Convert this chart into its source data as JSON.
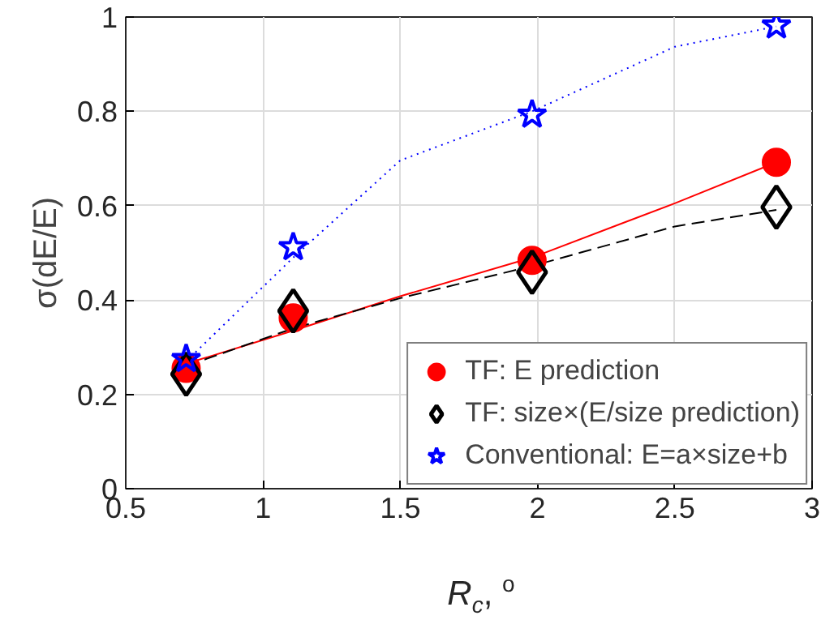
{
  "chart_data": {
    "type": "scatter",
    "xlabel": "R$_{c}$, $^{o}$",
    "ylabel": "σ(dE/E)",
    "xlim": [
      0.5,
      3
    ],
    "xticks": [
      0.5,
      1,
      1.5,
      2,
      2.5,
      3
    ],
    "ylim": [
      0,
      1
    ],
    "yticks": [
      0,
      0.2,
      0.4,
      0.6,
      0.8,
      1
    ],
    "grid": true,
    "legend": "bottom right",
    "x": [
      0.72,
      1.11,
      1.98,
      2.87
    ],
    "series": [
      {
        "type": "line",
        "color": "#ff0000",
        "line_style": "solid",
        "marker": "none",
        "x": [
          0.72,
          1.11,
          1.5,
          1.98,
          2.5,
          2.87
        ],
        "values": [
          0.265,
          0.335,
          0.408,
          0.49,
          0.605,
          0.692
        ]
      },
      {
        "type": "line",
        "color": "#000000",
        "line_style": "dashed",
        "marker": "none",
        "x": [
          0.72,
          1.11,
          1.5,
          1.98,
          2.5,
          2.87
        ],
        "values": [
          0.26,
          0.34,
          0.404,
          0.472,
          0.556,
          0.591
        ]
      },
      {
        "type": "line",
        "color": "#0000ff",
        "line_style": "dotted",
        "marker": "none",
        "x": [
          0.72,
          1.11,
          1.5,
          1.98,
          2.5,
          2.87
        ],
        "values": [
          0.27,
          0.49,
          0.696,
          0.8,
          0.937,
          0.98
        ]
      },
      {
        "name": "TF: E prediction",
        "color": "#ff0000",
        "marker": "circle",
        "values": [
          0.255,
          0.362,
          0.484,
          0.692
        ]
      },
      {
        "name": "TF: size×(E/size prediction)",
        "color": "#000000",
        "marker": "diamond",
        "values": [
          0.243,
          0.377,
          0.459,
          0.597
        ]
      },
      {
        "name": "Conventional: E=a×size+b",
        "color": "#0000ff",
        "marker": "star",
        "values": [
          0.275,
          0.512,
          0.793,
          0.982
        ]
      }
    ]
  }
}
